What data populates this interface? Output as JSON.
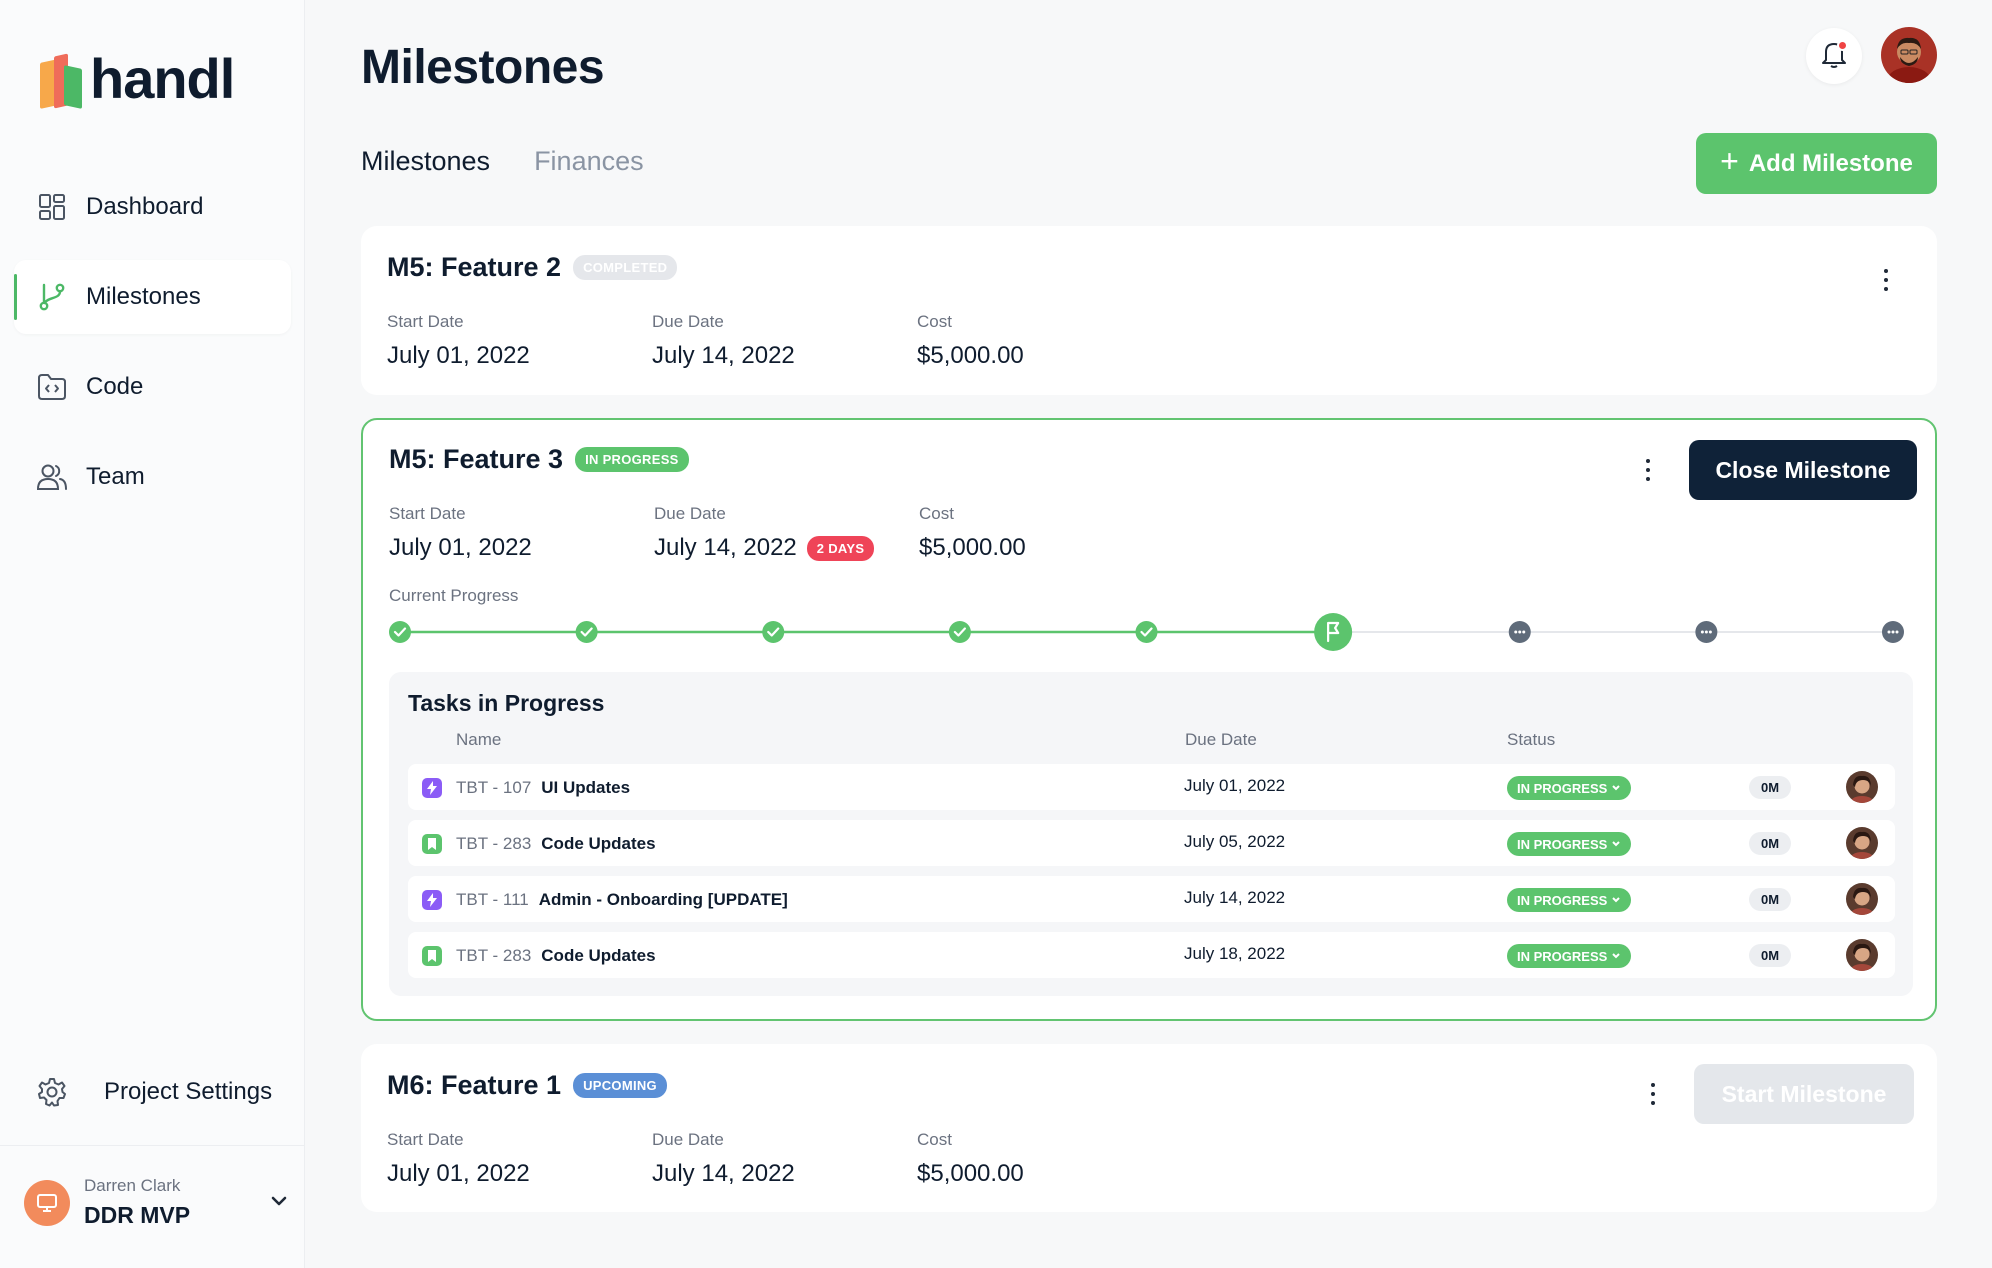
{
  "brand": {
    "name": "handl"
  },
  "nav": {
    "items": [
      {
        "label": "Dashboard",
        "icon": "grid-icon",
        "active": false
      },
      {
        "label": "Milestones",
        "icon": "branch-icon",
        "active": true
      },
      {
        "label": "Code",
        "icon": "code-folder-icon",
        "active": false
      },
      {
        "label": "Team",
        "icon": "users-icon",
        "active": false
      }
    ],
    "settings_label": "Project Settings"
  },
  "project": {
    "owner": "Darren Clark",
    "name": "DDR MVP"
  },
  "header": {
    "title": "Milestones"
  },
  "tabs": [
    {
      "label": "Milestones",
      "active": true
    },
    {
      "label": "Finances",
      "active": false
    }
  ],
  "add_button": {
    "label": "Add Milestone"
  },
  "labels": {
    "start": "Start Date",
    "due": "Due Date",
    "cost": "Cost",
    "current_progress": "Current Progress"
  },
  "milestones": [
    {
      "title": "M5: Feature 2",
      "status": "COMPLETED",
      "start": "July 01, 2022",
      "due": "July 14, 2022",
      "cost": "$5,000.00"
    },
    {
      "title": "M5: Feature 3",
      "status": "IN PROGRESS",
      "start": "July 01, 2022",
      "due": "July 14, 2022",
      "due_badge": "2 DAYS",
      "cost": "$5,000.00",
      "action": "Close Milestone"
    },
    {
      "title": "M6: Feature 1",
      "status": "UPCOMING",
      "start": "July 01, 2022",
      "due": "July 14, 2022",
      "cost": "$5,000.00",
      "action": "Start Milestone"
    }
  ],
  "progress": {
    "steps_total": 9,
    "completed_steps": 5,
    "current_step": 6
  },
  "tasks": {
    "title": "Tasks in Progress",
    "headers": {
      "name": "Name",
      "due": "Due Date",
      "status": "Status"
    },
    "rows": [
      {
        "type": "bolt",
        "id": "TBT - 107",
        "name": "UI Updates",
        "due": "July 01, 2022",
        "status": "IN PROGRESS",
        "estimate": "0M"
      },
      {
        "type": "book",
        "id": "TBT - 283",
        "name": "Code Updates",
        "due": "July 05, 2022",
        "status": "IN PROGRESS",
        "estimate": "0M"
      },
      {
        "type": "bolt",
        "id": "TBT - 111",
        "name": "Admin - Onboarding [UPDATE]",
        "due": "July 14, 2022",
        "status": "IN PROGRESS",
        "estimate": "0M"
      },
      {
        "type": "book",
        "id": "TBT - 283",
        "name": "Code Updates",
        "due": "July 18, 2022",
        "status": "IN PROGRESS",
        "estimate": "0M"
      }
    ]
  },
  "colors": {
    "accent": "#5cc46d",
    "dark": "#0f2238",
    "danger": "#ef4458",
    "info": "#5b8fd6"
  }
}
